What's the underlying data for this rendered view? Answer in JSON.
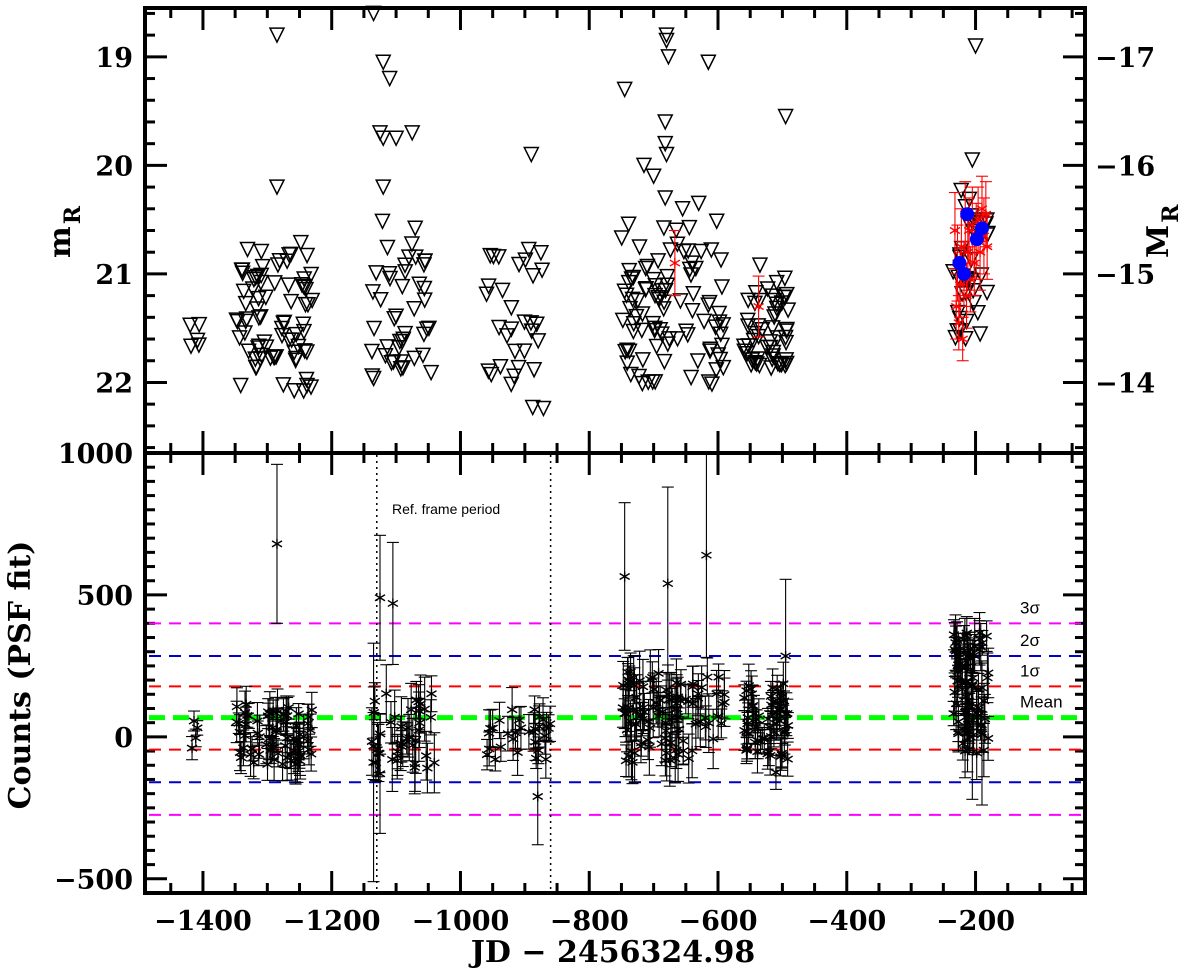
{
  "chart_data": [
    {
      "type": "scatter",
      "name": "top",
      "ylabel": "m",
      "ylabel_sub": "R",
      "y2label": "M",
      "y2label_sub": "R",
      "ylim": [
        22.65,
        18.55
      ],
      "y2_offset": 36.0,
      "xlim": [
        -1490,
        -30
      ],
      "yticks": [
        19,
        20,
        21,
        22
      ],
      "yticklabels": [
        "19",
        "20",
        "21",
        "22"
      ],
      "y2ticks": [
        -17,
        -16,
        -15,
        -14
      ],
      "y2ticklabels": [
        "−17",
        "−16",
        "−15",
        "−14"
      ],
      "series": [
        {
          "marker": "triangle-down",
          "color": "#000000",
          "clusters": [
            {
              "x0": -1420,
              "x1": -1405,
              "y0": 21.45,
              "y1": 21.7,
              "n": 5
            },
            {
              "x0": -1350,
              "x1": -1230,
              "y0": 20.7,
              "y1": 22.1,
              "n": 80
            },
            {
              "x0": -1140,
              "x1": -1045,
              "y0": 20.5,
              "y1": 22.0,
              "n": 45
            },
            {
              "x0": -960,
              "x1": -865,
              "y0": 20.7,
              "y1": 22.25,
              "n": 32
            },
            {
              "x0": -750,
              "x1": -590,
              "y0": 20.4,
              "y1": 22.05,
              "n": 95
            },
            {
              "x0": -560,
              "x1": -490,
              "y0": 20.9,
              "y1": 21.9,
              "n": 55
            },
            {
              "x0": -235,
              "x1": -180,
              "y0": 20.2,
              "y1": 21.7,
              "n": 38
            }
          ],
          "outliers": [
            {
              "x": -1285,
              "y": 18.8
            },
            {
              "x": -1285,
              "y": 20.2
            },
            {
              "x": -1135,
              "y": 18.6
            },
            {
              "x": -1120,
              "y": 19.05
            },
            {
              "x": -1110,
              "y": 19.2
            },
            {
              "x": -1125,
              "y": 19.7
            },
            {
              "x": -1120,
              "y": 19.75
            },
            {
              "x": -1100,
              "y": 19.75
            },
            {
              "x": -1075,
              "y": 19.7
            },
            {
              "x": -1120,
              "y": 20.2
            },
            {
              "x": -890,
              "y": 19.9
            },
            {
              "x": -745,
              "y": 19.3
            },
            {
              "x": -715,
              "y": 20.0
            },
            {
              "x": -680,
              "y": 18.85
            },
            {
              "x": -680,
              "y": 18.8
            },
            {
              "x": -677,
              "y": 19.0
            },
            {
              "x": -682,
              "y": 19.6
            },
            {
              "x": -682,
              "y": 19.8
            },
            {
              "x": -680,
              "y": 19.9
            },
            {
              "x": -682,
              "y": 20.3
            },
            {
              "x": -615,
              "y": 19.05
            },
            {
              "x": -495,
              "y": 19.55
            },
            {
              "x": -700,
              "y": 20.1
            },
            {
              "x": -655,
              "y": 20.4
            },
            {
              "x": -630,
              "y": 20.35
            },
            {
              "x": -200,
              "y": 18.9
            },
            {
              "x": -205,
              "y": 19.95
            }
          ]
        },
        {
          "marker": "star",
          "color": "#ff0000",
          "errorbars": true,
          "points": [
            {
              "x": -667,
              "y": 20.9,
              "err": 0.3
            },
            {
              "x": -537,
              "y": 21.3,
              "err": 0.28
            },
            {
              "x": -232,
              "y": 20.6,
              "err": 0.35
            },
            {
              "x": -230,
              "y": 21.3,
              "err": 0.3
            },
            {
              "x": -228,
              "y": 20.9,
              "err": 0.35
            },
            {
              "x": -226,
              "y": 21.45,
              "err": 0.25
            },
            {
              "x": -224,
              "y": 21.1,
              "err": 0.3
            },
            {
              "x": -222,
              "y": 20.75,
              "err": 0.35
            },
            {
              "x": -220,
              "y": 21.6,
              "err": 0.2
            },
            {
              "x": -218,
              "y": 21.0,
              "err": 0.3
            },
            {
              "x": -216,
              "y": 20.45,
              "err": 0.3
            },
            {
              "x": -214,
              "y": 21.2,
              "err": 0.3
            },
            {
              "x": -212,
              "y": 20.8,
              "err": 0.35
            },
            {
              "x": -210,
              "y": 20.6,
              "err": 0.3
            },
            {
              "x": -208,
              "y": 21.05,
              "err": 0.3
            },
            {
              "x": -205,
              "y": 20.55,
              "err": 0.35
            },
            {
              "x": -202,
              "y": 20.9,
              "err": 0.3
            },
            {
              "x": -199,
              "y": 20.7,
              "err": 0.35
            },
            {
              "x": -196,
              "y": 20.5,
              "err": 0.3
            },
            {
              "x": -193,
              "y": 20.8,
              "err": 0.35
            },
            {
              "x": -190,
              "y": 20.4,
              "err": 0.3
            },
            {
              "x": -187,
              "y": 20.65,
              "err": 0.35
            },
            {
              "x": -184,
              "y": 20.45,
              "err": 0.3
            },
            {
              "x": -182,
              "y": 20.75,
              "err": 0.3
            }
          ]
        },
        {
          "marker": "filled-circle",
          "color": "#0000ff",
          "points": [
            {
              "x": -225,
              "y": 20.9
            },
            {
              "x": -218,
              "y": 21.0
            },
            {
              "x": -213,
              "y": 20.45
            },
            {
              "x": -198,
              "y": 20.68
            },
            {
              "x": -190,
              "y": 20.58
            }
          ]
        }
      ]
    },
    {
      "type": "scatter",
      "name": "bottom",
      "xlabel": "JD − 2456324.98",
      "ylabel": "Counts (PSF fit)",
      "xlim": [
        -1490,
        -30
      ],
      "ylim": [
        -550,
        1000
      ],
      "xticks": [
        -1400,
        -1200,
        -1000,
        -800,
        -600,
        -400,
        -200
      ],
      "xticklabels": [
        "−1400",
        "−1200",
        "−1000",
        "−800",
        "−600",
        "−400",
        "−200"
      ],
      "yticks": [
        -500,
        0,
        500,
        1000
      ],
      "yticklabels": [
        "−500",
        "0",
        "500",
        "1000"
      ],
      "annotation": "Ref. frame period",
      "ref_period": [
        -1130,
        -860
      ],
      "reference_lines": [
        {
          "label": "3σ",
          "y": 400,
          "color": "#ff00ff",
          "width": 2
        },
        {
          "label": "2σ",
          "y": 285,
          "color": "#0000cc",
          "width": 2
        },
        {
          "label": "1σ",
          "y": 178,
          "color": "#ff0000",
          "width": 2
        },
        {
          "label": "Mean",
          "y": 68,
          "color": "#00ff00",
          "width": 5
        },
        {
          "label": "",
          "y": -45,
          "color": "#ff0000",
          "width": 2
        },
        {
          "label": "",
          "y": -160,
          "color": "#0000cc",
          "width": 2
        },
        {
          "label": "",
          "y": -275,
          "color": "#ff00ff",
          "width": 2
        }
      ],
      "clusters": [
        {
          "x0": -1422,
          "x1": -1408,
          "y0": -50,
          "y1": 90,
          "n": 4,
          "err": 35
        },
        {
          "x0": -1350,
          "x1": -1230,
          "y0": -100,
          "y1": 120,
          "n": 70,
          "err": 60
        },
        {
          "x0": -1140,
          "x1": -1040,
          "y0": -110,
          "y1": 160,
          "n": 40,
          "err": 90
        },
        {
          "x0": -960,
          "x1": -860,
          "y0": -80,
          "y1": 100,
          "n": 30,
          "err": 60
        },
        {
          "x0": -750,
          "x1": -590,
          "y0": -90,
          "y1": 230,
          "n": 100,
          "err": 75
        },
        {
          "x0": -560,
          "x1": -490,
          "y0": -80,
          "y1": 190,
          "n": 60,
          "err": 55
        },
        {
          "x0": -235,
          "x1": -180,
          "y0": -60,
          "y1": 370,
          "n": 80,
          "err": 70
        }
      ],
      "outliers": [
        {
          "x": -1285,
          "y": 680,
          "err": 280
        },
        {
          "x": -1125,
          "y": 490,
          "err": 220
        },
        {
          "x": -1105,
          "y": 470,
          "err": 215
        },
        {
          "x": -1135,
          "y": -90,
          "err": 420
        },
        {
          "x": -1125,
          "y": -130,
          "err": 210
        },
        {
          "x": -880,
          "y": -210,
          "err": 170
        },
        {
          "x": -745,
          "y": 565,
          "err": 260
        },
        {
          "x": -678,
          "y": 540,
          "err": 340
        },
        {
          "x": -618,
          "y": 640,
          "err": 360
        },
        {
          "x": -495,
          "y": 285,
          "err": 270
        },
        {
          "x": -510,
          "y": -125,
          "err": 60
        },
        {
          "x": -205,
          "y": 60,
          "err": 280
        },
        {
          "x": -190,
          "y": 10,
          "err": 250
        }
      ]
    }
  ]
}
